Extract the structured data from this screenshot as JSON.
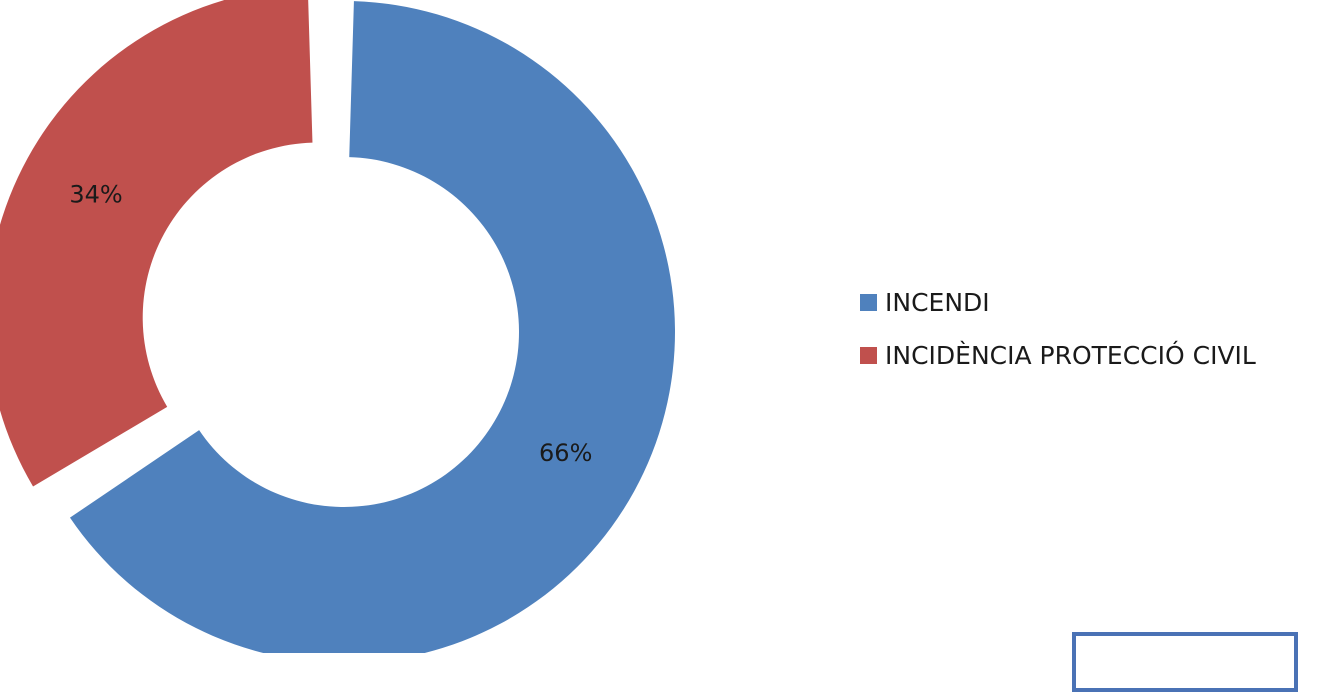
{
  "chart_data": {
    "type": "pie",
    "variant": "doughnut",
    "title": "",
    "slices": [
      {
        "name": "INCENDI",
        "value": 66,
        "label": "66%",
        "color": "#4F81BD"
      },
      {
        "name": "INCIDÈNCIA PROTECCIÓ CIVIL",
        "value": 34,
        "label": "34%",
        "color": "#C0504D",
        "exploded": true
      }
    ],
    "legend_position": "right"
  }
}
